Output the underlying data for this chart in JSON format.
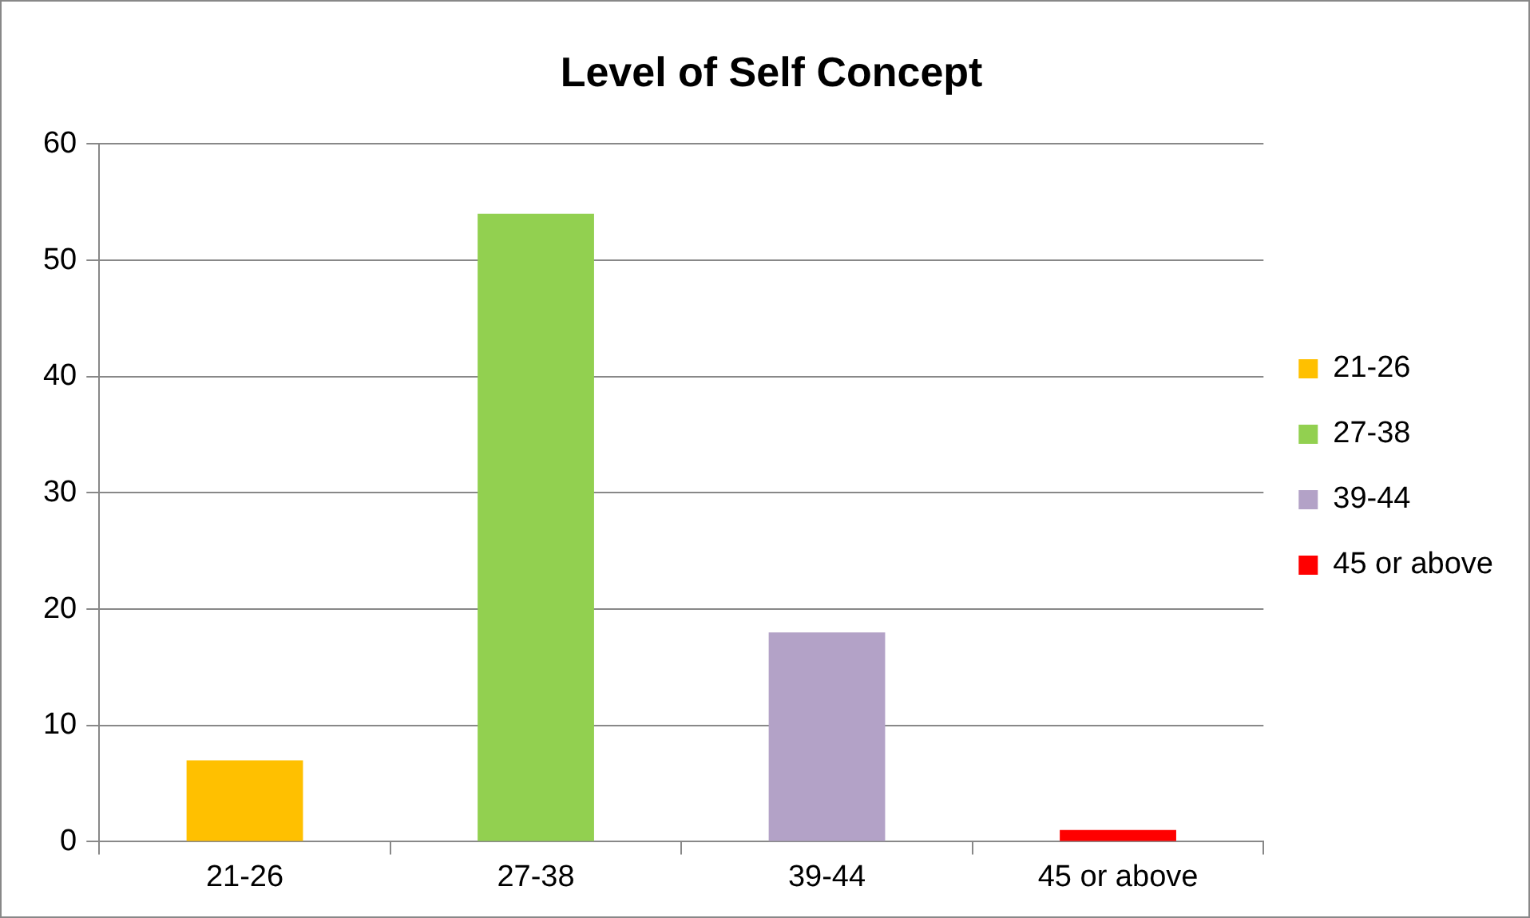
{
  "chart_data": {
    "type": "bar",
    "title": "Level of Self Concept",
    "categories": [
      "21-26",
      "27-38",
      "39-44",
      "45 or above"
    ],
    "series": [
      {
        "name": "21-26",
        "color": "#ffc000",
        "values": [
          7,
          null,
          null,
          null
        ]
      },
      {
        "name": "27-38",
        "color": "#92d050",
        "values": [
          null,
          54,
          null,
          null
        ]
      },
      {
        "name": "39-44",
        "color": "#b3a2c7",
        "values": [
          null,
          null,
          18,
          null
        ]
      },
      {
        "name": "45 or above",
        "color": "#ff0000",
        "values": [
          null,
          null,
          null,
          1
        ]
      }
    ],
    "ylim": [
      0,
      60
    ],
    "yticks": [
      0,
      10,
      20,
      30,
      40,
      50,
      60
    ],
    "grid": "y",
    "legend": "right"
  }
}
